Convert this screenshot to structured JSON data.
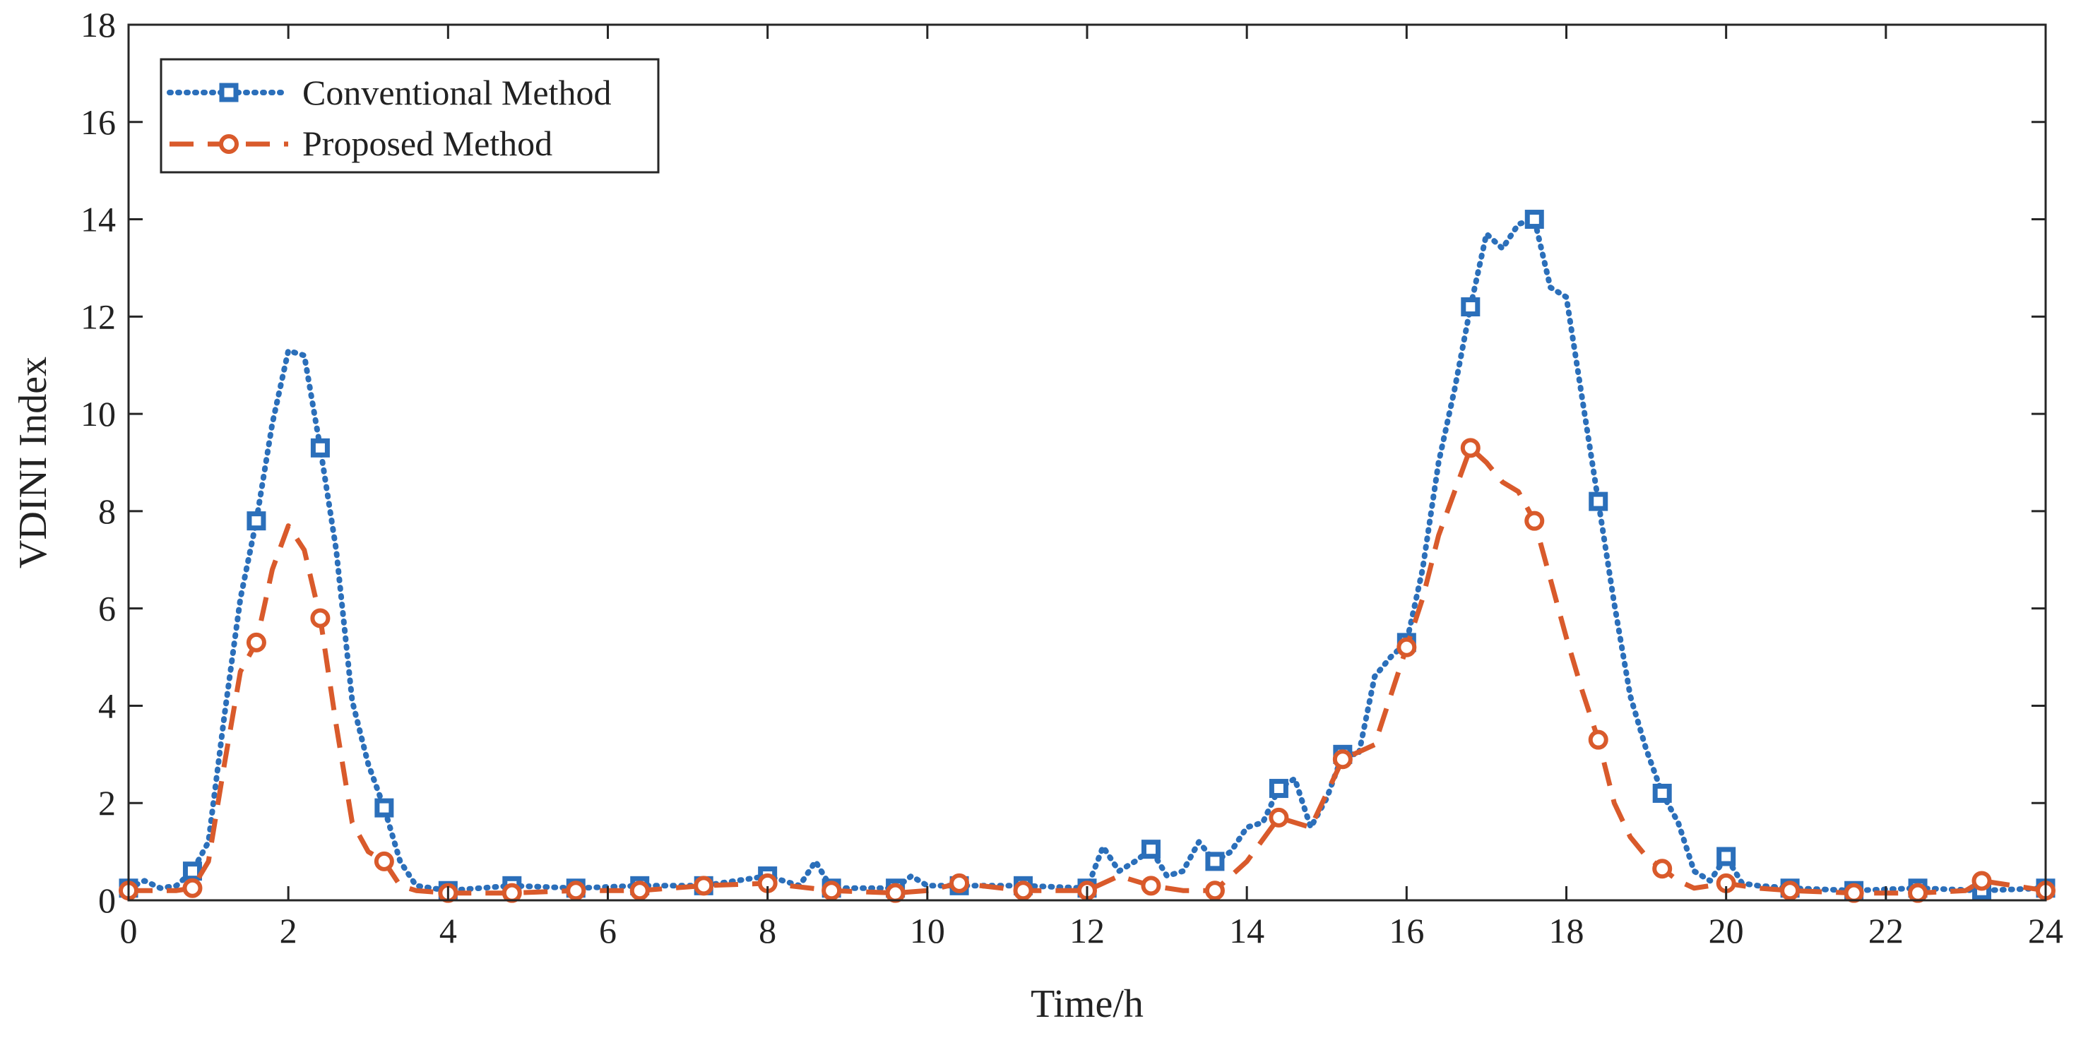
{
  "chart_data": {
    "type": "line",
    "title": "",
    "xlabel": "Time/h",
    "ylabel": "VDINI Index",
    "xlim": [
      0,
      24
    ],
    "ylim": [
      0,
      18
    ],
    "xticks": [
      0,
      2,
      4,
      6,
      8,
      10,
      12,
      14,
      16,
      18,
      20,
      22,
      24
    ],
    "yticks": [
      0,
      2,
      4,
      6,
      8,
      10,
      12,
      14,
      16,
      18
    ],
    "grid": false,
    "legend_position": "top-left",
    "series": [
      {
        "name": "Conventional Method",
        "color": "#2b6fba",
        "line_style": "dotted",
        "marker": "square",
        "x": [
          0,
          0.2,
          0.4,
          0.6,
          0.8,
          1.0,
          1.2,
          1.4,
          1.6,
          1.8,
          2.0,
          2.2,
          2.4,
          2.6,
          2.8,
          3.0,
          3.2,
          3.4,
          3.6,
          3.8,
          4.0,
          4.8,
          5.6,
          6.4,
          7.2,
          8.0,
          8.4,
          8.6,
          8.8,
          9.6,
          9.8,
          10.0,
          10.4,
          11.2,
          12.0,
          12.2,
          12.4,
          12.6,
          12.8,
          13.0,
          13.2,
          13.4,
          13.6,
          13.8,
          14.0,
          14.2,
          14.4,
          14.6,
          14.8,
          15.0,
          15.2,
          15.4,
          15.6,
          15.8,
          16.0,
          16.2,
          16.4,
          16.6,
          16.8,
          17.0,
          17.2,
          17.4,
          17.6,
          17.8,
          18.0,
          18.2,
          18.4,
          18.6,
          18.8,
          19.0,
          19.2,
          19.4,
          19.6,
          19.8,
          20.0,
          20.2,
          20.4,
          20.8,
          21.6,
          22.4,
          23.2,
          24.0
        ],
        "y": [
          0.25,
          0.4,
          0.25,
          0.3,
          0.6,
          1.2,
          3.8,
          6.2,
          7.8,
          9.8,
          11.3,
          11.2,
          9.3,
          7.2,
          4.1,
          2.8,
          1.9,
          0.8,
          0.3,
          0.25,
          0.2,
          0.3,
          0.25,
          0.3,
          0.3,
          0.5,
          0.3,
          0.8,
          0.25,
          0.25,
          0.5,
          0.3,
          0.3,
          0.3,
          0.25,
          1.1,
          0.6,
          0.8,
          1.05,
          0.5,
          0.6,
          1.2,
          0.8,
          1.0,
          1.5,
          1.6,
          2.3,
          2.5,
          1.5,
          2.1,
          3.0,
          3.0,
          4.6,
          5.0,
          5.3,
          6.8,
          9.0,
          10.5,
          12.2,
          13.7,
          13.4,
          13.9,
          14.0,
          12.6,
          12.4,
          10.3,
          8.2,
          6.1,
          4.2,
          3.1,
          2.2,
          1.6,
          0.6,
          0.4,
          0.9,
          0.35,
          0.3,
          0.25,
          0.2,
          0.25,
          0.2,
          0.25
        ]
      },
      {
        "name": "Proposed Method",
        "color": "#d95a2b",
        "line_style": "dashed",
        "marker": "circle",
        "x": [
          0,
          0.2,
          0.4,
          0.6,
          0.8,
          1.0,
          1.2,
          1.4,
          1.6,
          1.8,
          2.0,
          2.2,
          2.4,
          2.6,
          2.8,
          3.0,
          3.2,
          3.4,
          3.6,
          4.0,
          4.8,
          5.6,
          6.4,
          7.2,
          8.0,
          8.8,
          9.6,
          10.0,
          10.4,
          11.2,
          12.0,
          12.4,
          12.8,
          13.2,
          13.6,
          14.0,
          14.4,
          14.8,
          15.2,
          15.6,
          16.0,
          16.2,
          16.4,
          16.6,
          16.8,
          17.0,
          17.2,
          17.4,
          17.6,
          17.8,
          18.0,
          18.2,
          18.4,
          18.6,
          18.8,
          19.0,
          19.2,
          19.4,
          19.6,
          20.0,
          20.4,
          20.8,
          21.6,
          22.4,
          23.0,
          23.2,
          23.6,
          24.0
        ],
        "y": [
          0.2,
          0.2,
          0.2,
          0.2,
          0.25,
          0.8,
          2.8,
          4.7,
          5.3,
          6.8,
          7.7,
          7.2,
          5.8,
          3.6,
          1.6,
          1.0,
          0.8,
          0.3,
          0.2,
          0.15,
          0.15,
          0.2,
          0.2,
          0.3,
          0.35,
          0.2,
          0.15,
          0.2,
          0.35,
          0.2,
          0.2,
          0.5,
          0.3,
          0.2,
          0.2,
          0.8,
          1.7,
          1.5,
          2.9,
          3.2,
          5.2,
          6.2,
          7.5,
          8.4,
          9.3,
          9.0,
          8.6,
          8.4,
          7.8,
          6.6,
          5.4,
          4.3,
          3.3,
          2.0,
          1.3,
          0.9,
          0.65,
          0.4,
          0.25,
          0.35,
          0.25,
          0.2,
          0.15,
          0.15,
          0.2,
          0.4,
          0.3,
          0.2
        ]
      }
    ]
  }
}
